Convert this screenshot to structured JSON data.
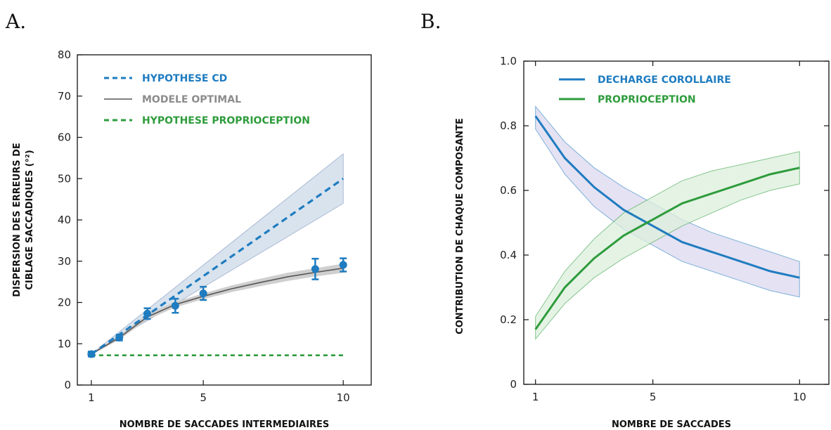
{
  "colors": {
    "cd_blue": "#1f7cc0",
    "optimal_gray": "#555555",
    "optimal_label_gray": "#8c8c8c",
    "proprio_green": "#2e9c3c",
    "band_blue": "#d8e3ee",
    "band_purple": "#dcd8ef",
    "band_green": "#dcefdc",
    "band_gray": "#cfcfcf"
  },
  "chart_data": [
    {
      "panel_label": "A.",
      "type": "line",
      "xlabel": "NOMBRE DE SACCADES INTERMEDIAIRES",
      "ylabel_lines": [
        "DISPERSION DES ERREURS DE",
        "CIBLAGE SACCADIQUES (°²)"
      ],
      "xlim": [
        0.5,
        11
      ],
      "ylim": [
        0,
        80
      ],
      "xticks": [
        1,
        5,
        10
      ],
      "yticks": [
        0,
        10,
        20,
        30,
        40,
        50,
        60,
        70,
        80
      ],
      "grid": false,
      "legend_position": "top-left",
      "series": [
        {
          "name": "HYPOTHESE CD",
          "style": "dashed",
          "color_key": "cd_blue",
          "x": [
            1,
            10
          ],
          "y": [
            7.5,
            50
          ],
          "band_lower": [
            7.5,
            44
          ],
          "band_upper": [
            7.5,
            56
          ]
        },
        {
          "name": "MODELE OPTIMAL",
          "style": "solid",
          "color_key": "optimal_gray",
          "x": [
            1,
            2,
            3,
            4,
            5,
            6,
            7,
            8,
            9,
            10
          ],
          "y": [
            7.5,
            11.5,
            16.5,
            19.5,
            21.5,
            23.3,
            24.8,
            26.2,
            27.3,
            28.3
          ],
          "band_lower": [
            7.3,
            11.0,
            15.8,
            18.8,
            20.8,
            22.5,
            23.9,
            25.2,
            26.3,
            27.2
          ],
          "band_upper": [
            7.7,
            12.0,
            17.2,
            20.2,
            22.2,
            24.1,
            25.7,
            27.2,
            28.3,
            29.4
          ]
        },
        {
          "name": "HYPOTHESE PROPRIOCEPTION",
          "style": "dashed",
          "color_key": "proprio_green",
          "x": [
            1,
            10
          ],
          "y": [
            7.2,
            7.2
          ]
        }
      ],
      "data_points": {
        "x": [
          1,
          2,
          3,
          4,
          5,
          9,
          10
        ],
        "y": [
          7.5,
          11.5,
          17.3,
          19.2,
          22.2,
          28.1,
          29.1
        ],
        "err": [
          0.6,
          0.7,
          1.3,
          1.7,
          1.6,
          2.5,
          1.6
        ]
      }
    },
    {
      "panel_label": "B.",
      "type": "line",
      "xlabel": "NOMBRE DE SACCADES",
      "ylabel": "CONTRIBUTION DE CHAQUE COMPOSANTE",
      "xlim": [
        0.6,
        11
      ],
      "ylim": [
        0,
        1.0
      ],
      "xticks": [
        1,
        5,
        10
      ],
      "yticks": [
        0,
        0.2,
        0.4,
        0.6,
        0.8,
        1.0
      ],
      "ytick_labels": [
        "0",
        "0.2",
        "0.4",
        "0.6",
        "0.8",
        "1.0"
      ],
      "grid": false,
      "legend_position": "top-left",
      "series": [
        {
          "name": "DECHARGE COROLLAIRE",
          "color_key": "cd_blue",
          "band_color_key": "band_purple",
          "x": [
            1,
            2,
            3,
            4,
            5,
            6,
            7,
            8,
            9,
            10
          ],
          "y": [
            0.83,
            0.7,
            0.61,
            0.54,
            0.49,
            0.44,
            0.41,
            0.38,
            0.35,
            0.33
          ],
          "band_lower": [
            0.79,
            0.65,
            0.55,
            0.48,
            0.43,
            0.38,
            0.35,
            0.32,
            0.29,
            0.27
          ],
          "band_upper": [
            0.86,
            0.75,
            0.67,
            0.61,
            0.56,
            0.51,
            0.47,
            0.44,
            0.41,
            0.38
          ]
        },
        {
          "name": "PROPRIOCEPTION",
          "color_key": "proprio_green",
          "band_color_key": "band_green",
          "x": [
            1,
            2,
            3,
            4,
            5,
            6,
            7,
            8,
            9,
            10
          ],
          "y": [
            0.17,
            0.3,
            0.39,
            0.46,
            0.51,
            0.56,
            0.59,
            0.62,
            0.65,
            0.67
          ],
          "band_lower": [
            0.14,
            0.25,
            0.33,
            0.39,
            0.44,
            0.49,
            0.53,
            0.57,
            0.6,
            0.62
          ],
          "band_upper": [
            0.21,
            0.35,
            0.45,
            0.53,
            0.58,
            0.63,
            0.66,
            0.68,
            0.7,
            0.72
          ]
        }
      ]
    }
  ]
}
